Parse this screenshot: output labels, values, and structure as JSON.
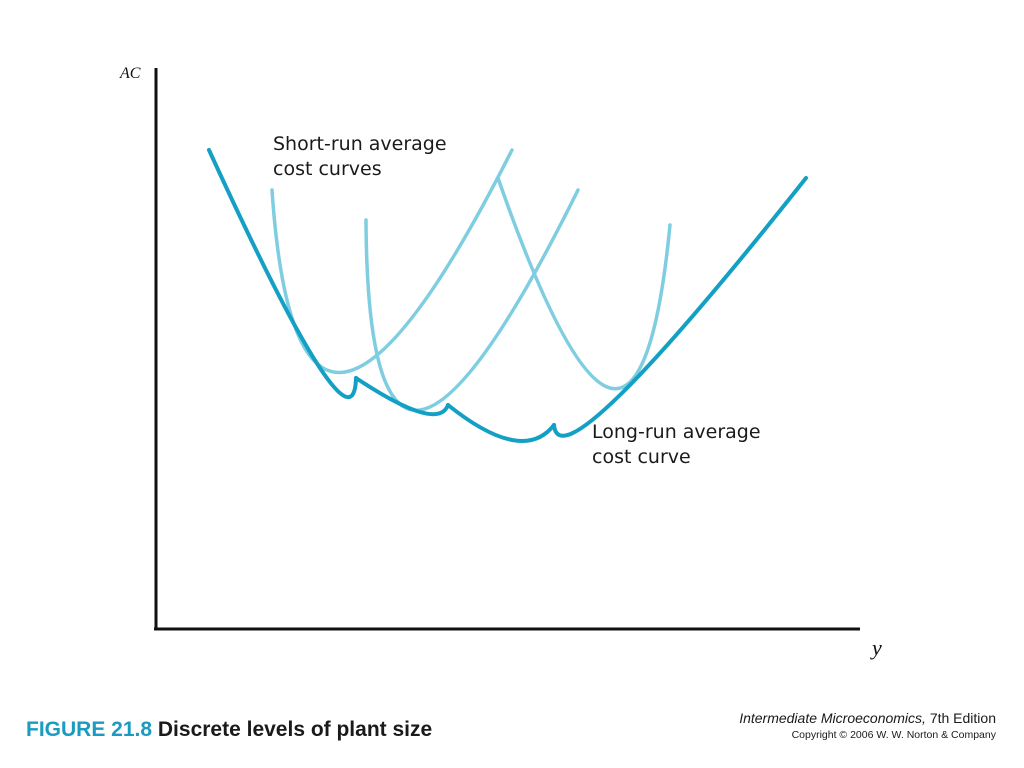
{
  "axes": {
    "y_label": "AC",
    "x_label": "y"
  },
  "annotations": {
    "short_run_line1": "Short-run average",
    "short_run_line2": "cost curves",
    "long_run_line1": "Long-run average",
    "long_run_line2": "cost curve"
  },
  "caption": {
    "figure_number": "FIGURE 21.8",
    "figure_title": "Discrete levels of plant size"
  },
  "source": {
    "book_title": "Intermediate Microeconomics,",
    "edition": "7th Edition",
    "copyright": "Copyright © 2006 W. W. Norton & Company"
  },
  "colors": {
    "long_run": "#14a0c4",
    "short_run": "#7fcde0",
    "axis": "#111111"
  },
  "curves": [
    {
      "id": "sr-1",
      "kind": "short-run",
      "pts": [
        [
          272,
          190
        ],
        [
          345,
          372
        ],
        [
          512,
          150
        ]
      ]
    },
    {
      "id": "sr-2",
      "kind": "short-run",
      "pts": [
        [
          366,
          220
        ],
        [
          420,
          410
        ],
        [
          578,
          190
        ]
      ]
    },
    {
      "id": "sr-3",
      "kind": "short-run",
      "pts": [
        [
          498,
          178
        ],
        [
          610,
          388
        ],
        [
          670,
          225
        ]
      ]
    },
    {
      "id": "lr-1",
      "kind": "long-run",
      "pts": [
        [
          209,
          150
        ],
        [
          318,
          365
        ],
        [
          356,
          378
        ]
      ]
    },
    {
      "id": "lr-2",
      "kind": "long-run",
      "pts": [
        [
          356,
          378
        ],
        [
          420,
          412
        ],
        [
          448,
          405
        ]
      ]
    },
    {
      "id": "lr-3",
      "kind": "long-run",
      "pts": [
        [
          448,
          405
        ],
        [
          512,
          440
        ],
        [
          554,
          425
        ]
      ]
    },
    {
      "id": "lr-4",
      "kind": "long-run",
      "pts": [
        [
          554,
          425
        ],
        [
          620,
          395
        ],
        [
          806,
          178
        ]
      ]
    }
  ]
}
